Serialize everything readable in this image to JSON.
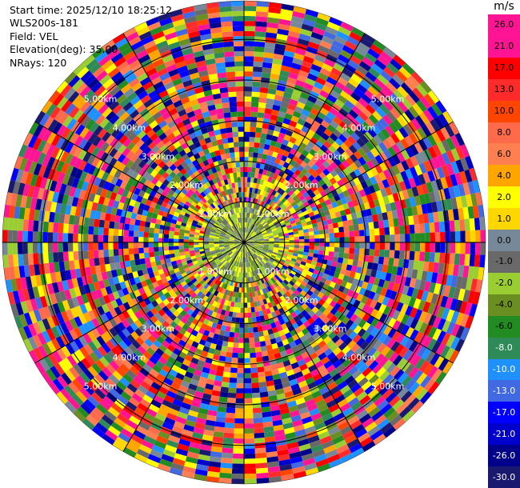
{
  "header": {
    "start_time": "Start time: 2025/12/10 18:25:12",
    "instrument": "WLS200s-181",
    "field": "Field: VEL",
    "elevation": "Elevation(deg): 35.00",
    "nrays": "NRays: 120"
  },
  "chart_data": {
    "type": "ppi-polar",
    "field": "VEL",
    "units": "m/s",
    "range_rings_km": [
      1.0,
      2.0,
      3.0,
      4.0,
      5.0
    ],
    "range_ring_labels": [
      "1.00km",
      "2.00km",
      "3.00km",
      "4.00km",
      "5.00km"
    ],
    "max_range_km": 5.95,
    "n_rays": 120,
    "n_gates": 48,
    "spokes_deg": [
      0,
      30,
      60,
      90,
      120,
      150
    ],
    "colorbar": {
      "title": "m/s",
      "labels": [
        "26.0",
        "21.0",
        "17.0",
        "13.0",
        "10.0",
        "8.0",
        "6.0",
        "4.0",
        "2.0",
        "1.0",
        "0.0",
        "-1.0",
        "-2.0",
        "-4.0",
        "-6.0",
        "-8.0",
        "-10.0",
        "-13.0",
        "-17.0",
        "-21.0",
        "-26.0",
        "-30.0"
      ],
      "colors": [
        "#ff1493",
        "#ff1493",
        "#ff0000",
        "#ff2a2a",
        "#ff4500",
        "#ff6a4a",
        "#ff7f50",
        "#ffa500",
        "#ffff00",
        "#ffd700",
        "#778899",
        "#696969",
        "#9acd32",
        "#6b8e23",
        "#228b22",
        "#2e8b57",
        "#1e90ff",
        "#4169e1",
        "#0000ff",
        "#0000cd",
        "#00008b",
        "#191970"
      ]
    }
  }
}
